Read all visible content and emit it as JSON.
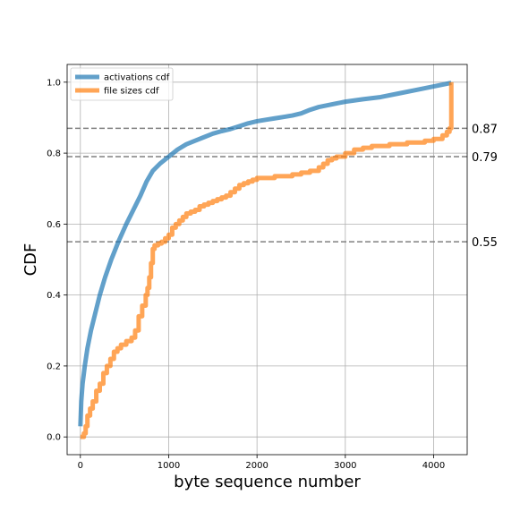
{
  "chart_data": {
    "type": "line",
    "title": "",
    "xlabel": "byte sequence number",
    "ylabel": "CDF",
    "xlim": [
      -150,
      4380
    ],
    "ylim": [
      -0.05,
      1.05
    ],
    "xticks": [
      0,
      1000,
      2000,
      3000,
      4000
    ],
    "yticks": [
      0.0,
      0.2,
      0.4,
      0.6,
      0.8,
      1.0
    ],
    "xtick_labels": [
      "0",
      "1000",
      "2000",
      "3000",
      "4000"
    ],
    "ytick_labels": [
      "0.0",
      "0.2",
      "0.4",
      "0.6",
      "0.8",
      "1.0"
    ],
    "grid": true,
    "legend_position": "top-left",
    "hlines": [
      {
        "y": 0.87,
        "label": "0.87"
      },
      {
        "y": 0.79,
        "label": "0.79"
      },
      {
        "y": 0.55,
        "label": "0.55"
      }
    ],
    "series": [
      {
        "name": "activations cdf",
        "color": "#1f77b4",
        "step": false,
        "x": [
          0,
          10,
          25,
          50,
          80,
          120,
          170,
          220,
          280,
          350,
          430,
          520,
          600,
          680,
          750,
          820,
          900,
          1000,
          1100,
          1200,
          1300,
          1400,
          1500,
          1600,
          1700,
          1800,
          1900,
          2000,
          2100,
          2200,
          2300,
          2400,
          2500,
          2600,
          2700,
          2800,
          2900,
          3000,
          3200,
          3400,
          3600,
          3800,
          4000,
          4200
        ],
        "y": [
          0.03,
          0.1,
          0.15,
          0.2,
          0.25,
          0.3,
          0.35,
          0.4,
          0.45,
          0.5,
          0.55,
          0.6,
          0.64,
          0.68,
          0.72,
          0.75,
          0.77,
          0.79,
          0.81,
          0.825,
          0.835,
          0.845,
          0.855,
          0.862,
          0.868,
          0.876,
          0.884,
          0.89,
          0.894,
          0.898,
          0.902,
          0.906,
          0.912,
          0.922,
          0.93,
          0.935,
          0.94,
          0.945,
          0.952,
          0.958,
          0.968,
          0.978,
          0.988,
          0.998
        ]
      },
      {
        "name": "file sizes cdf",
        "color": "#ff7f0e",
        "step": true,
        "x": [
          0,
          40,
          60,
          80,
          110,
          140,
          180,
          220,
          260,
          300,
          340,
          380,
          420,
          460,
          520,
          580,
          620,
          660,
          700,
          740,
          760,
          780,
          800,
          820,
          840,
          880,
          920,
          960,
          1000,
          1040,
          1080,
          1120,
          1160,
          1200,
          1250,
          1300,
          1350,
          1400,
          1450,
          1500,
          1550,
          1600,
          1650,
          1700,
          1750,
          1800,
          1850,
          1900,
          1950,
          2000,
          2200,
          2400,
          2500,
          2600,
          2700,
          2750,
          2800,
          2850,
          2900,
          3000,
          3100,
          3200,
          3300,
          3400,
          3500,
          3600,
          3700,
          3900,
          4000,
          4100,
          4150,
          4180,
          4200,
          4200
        ],
        "y": [
          0.0,
          0.01,
          0.03,
          0.06,
          0.08,
          0.1,
          0.13,
          0.15,
          0.18,
          0.2,
          0.22,
          0.24,
          0.25,
          0.26,
          0.27,
          0.28,
          0.3,
          0.34,
          0.37,
          0.4,
          0.42,
          0.45,
          0.49,
          0.53,
          0.54,
          0.545,
          0.55,
          0.56,
          0.57,
          0.59,
          0.6,
          0.61,
          0.62,
          0.63,
          0.635,
          0.64,
          0.65,
          0.655,
          0.66,
          0.665,
          0.67,
          0.675,
          0.68,
          0.69,
          0.7,
          0.71,
          0.715,
          0.72,
          0.725,
          0.73,
          0.735,
          0.74,
          0.745,
          0.75,
          0.76,
          0.77,
          0.78,
          0.785,
          0.79,
          0.8,
          0.81,
          0.815,
          0.82,
          0.82,
          0.825,
          0.825,
          0.83,
          0.835,
          0.84,
          0.85,
          0.86,
          0.87,
          0.88,
          1.0
        ]
      }
    ]
  }
}
